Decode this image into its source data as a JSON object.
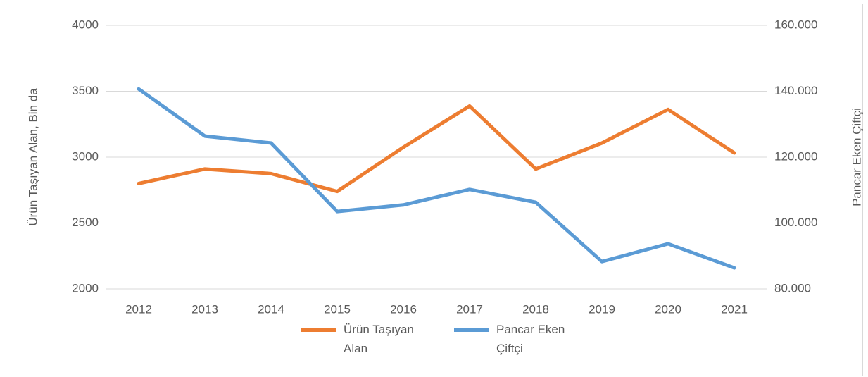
{
  "chart_data": {
    "type": "line",
    "y_label": "Ürün Taşıyan Alan, Bin da",
    "y2_label": "Pancar Eken Çiftçi",
    "categories": [
      "2012",
      "2013",
      "2014",
      "2015",
      "2016",
      "2017",
      "2018",
      "2019",
      "2020",
      "2021"
    ],
    "series": [
      {
        "name": "Ürün Taşıyan Alan",
        "color": "#ed7d31",
        "values": [
          2800,
          2910,
          2875,
          2740,
          3075,
          3388,
          2910,
          3107,
          3362,
          3032
        ]
      },
      {
        "name": "Pancar Eken Çiftçi",
        "color": "#5b9bd5",
        "axis": "y2",
        "values": [
          140700,
          126400,
          124300,
          103500,
          105500,
          110200,
          106300,
          88300,
          93700,
          86400
        ]
      }
    ],
    "ylim": [
      2000,
      4000
    ],
    "yticks": [
      2000,
      2500,
      3000,
      3500,
      4000
    ],
    "y2lim": [
      80000,
      160000
    ],
    "y2ticks": [
      {
        "value": 80000,
        "label": "80.000"
      },
      {
        "value": 100000,
        "label": "100.000"
      },
      {
        "value": 120000,
        "label": "120.000"
      },
      {
        "value": 140000,
        "label": "140.000"
      },
      {
        "value": 160000,
        "label": "160.000"
      }
    ],
    "grid": true,
    "legend": "bottom"
  }
}
